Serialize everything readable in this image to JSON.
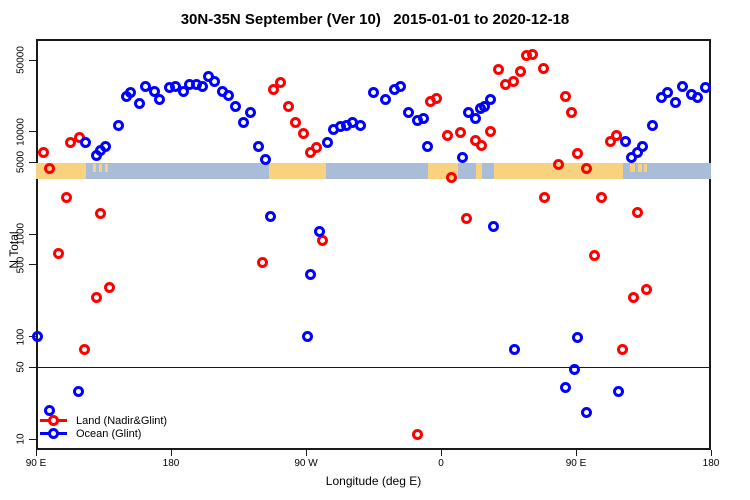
{
  "chart_data": {
    "type": "scatter",
    "title": "30N-35N September (Ver 10)   2015-01-01 to 2020-12-18",
    "xlabel": "Longitude (deg E)",
    "ylabel": "N Total",
    "x_axis": {
      "note": "longitude axis wraps eastward from 90E through the dateline back to 180",
      "ticks": [
        {
          "lon": 90,
          "label": "90 E"
        },
        {
          "lon": 180,
          "label": "180"
        },
        {
          "lon": 270,
          "label": "90 W"
        },
        {
          "lon": 360,
          "label": "0"
        },
        {
          "lon": 450,
          "label": "90 E"
        },
        {
          "lon": 540,
          "label": "180"
        }
      ]
    },
    "y_axis": {
      "scale": "log",
      "ticks": [
        10,
        50,
        100,
        500,
        1000,
        5000,
        10000,
        50000
      ],
      "ylim": [
        8,
        80000
      ]
    },
    "reference_line_y": 50,
    "map_band": {
      "ocean_color": "#a9bdd9",
      "land_color": "#f8d27e",
      "value_top": 5000,
      "value_bottom": 3500,
      "segments": [
        {
          "from": 90,
          "to": 123,
          "type": "land"
        },
        {
          "from": 123,
          "to": 245,
          "type": "ocean"
        },
        {
          "from": 245,
          "to": 283,
          "type": "land"
        },
        {
          "from": 283,
          "to": 351,
          "type": "ocean"
        },
        {
          "from": 351,
          "to": 371,
          "type": "land"
        },
        {
          "from": 371,
          "to": 383,
          "type": "ocean"
        },
        {
          "from": 383,
          "to": 387,
          "type": "land"
        },
        {
          "from": 387,
          "to": 395,
          "type": "ocean"
        },
        {
          "from": 395,
          "to": 481,
          "type": "land"
        },
        {
          "from": 481,
          "to": 540,
          "type": "ocean"
        }
      ],
      "islands": [
        {
          "from": 128,
          "to": 130
        },
        {
          "from": 132,
          "to": 134
        },
        {
          "from": 136,
          "to": 138
        },
        {
          "from": 486,
          "to": 489
        },
        {
          "from": 491,
          "to": 494
        },
        {
          "from": 495,
          "to": 497
        }
      ]
    },
    "legend": [
      {
        "label": "Land (Nadir&Glint)",
        "color": "#ff0000"
      },
      {
        "label": "Ocean (Glint)",
        "color": "#0000ff"
      }
    ],
    "series": [
      {
        "name": "Land (Nadir&Glint)",
        "color": "#ff0000",
        "points": [
          [
            95,
            6200
          ],
          [
            99,
            4400
          ],
          [
            113,
            7800
          ],
          [
            119,
            8700
          ],
          [
            110,
            2250
          ],
          [
            133,
            1600
          ],
          [
            105,
            640
          ],
          [
            130,
            240
          ],
          [
            139,
            300
          ],
          [
            122,
            75
          ],
          [
            253,
            30000
          ],
          [
            248,
            25500
          ],
          [
            258,
            17400
          ],
          [
            263,
            12200
          ],
          [
            268,
            9500
          ],
          [
            273,
            6200
          ],
          [
            277,
            7000
          ],
          [
            241,
            530
          ],
          [
            281,
            875
          ],
          [
            353,
            19500
          ],
          [
            357,
            21000
          ],
          [
            364,
            9100
          ],
          [
            373,
            9900
          ],
          [
            383,
            8250
          ],
          [
            387,
            7350
          ],
          [
            393,
            10100
          ],
          [
            367,
            3600
          ],
          [
            398,
            40000
          ],
          [
            403,
            29000
          ],
          [
            408,
            30600
          ],
          [
            413,
            38500
          ],
          [
            417,
            55500
          ],
          [
            421,
            56500
          ],
          [
            428,
            41500
          ],
          [
            377,
            1430
          ],
          [
            344,
            11
          ],
          [
            429,
            2300
          ],
          [
            443,
            22000
          ],
          [
            447,
            15300
          ],
          [
            451,
            6100
          ],
          [
            438,
            4750
          ],
          [
            457,
            4400
          ],
          [
            477,
            9100
          ],
          [
            473,
            7950
          ],
          [
            467,
            2250
          ],
          [
            491,
            1640
          ],
          [
            462,
            620
          ],
          [
            488,
            240
          ],
          [
            497,
            290
          ],
          [
            481,
            75
          ]
        ]
      },
      {
        "name": "Ocean (Glint)",
        "color": "#0000ff",
        "points": [
          [
            123,
            7900
          ],
          [
            130,
            5800
          ],
          [
            133,
            6600
          ],
          [
            136,
            7100
          ],
          [
            145,
            11600
          ],
          [
            150,
            22000
          ],
          [
            153,
            24000
          ],
          [
            159,
            19000
          ],
          [
            163,
            27500
          ],
          [
            169,
            24500
          ],
          [
            172,
            20400
          ],
          [
            179,
            27000
          ],
          [
            183,
            27500
          ],
          [
            188,
            24500
          ],
          [
            192,
            28700
          ],
          [
            197,
            28700
          ],
          [
            201,
            27400
          ],
          [
            205,
            34300
          ],
          [
            209,
            30600
          ],
          [
            214,
            24500
          ],
          [
            218,
            22400
          ],
          [
            223,
            17400
          ],
          [
            233,
            15500
          ],
          [
            228,
            12200
          ],
          [
            238,
            7100
          ],
          [
            243,
            5300
          ],
          [
            284,
            7800
          ],
          [
            288,
            10400
          ],
          [
            293,
            11100
          ],
          [
            297,
            11400
          ],
          [
            301,
            12400
          ],
          [
            306,
            11600
          ],
          [
            315,
            24000
          ],
          [
            323,
            20400
          ],
          [
            329,
            25700
          ],
          [
            333,
            27400
          ],
          [
            338,
            15500
          ],
          [
            344,
            12900
          ],
          [
            348,
            13500
          ],
          [
            351,
            7200
          ],
          [
            378,
            15200
          ],
          [
            383,
            13500
          ],
          [
            386,
            16900
          ],
          [
            389,
            17400
          ],
          [
            393,
            20400
          ],
          [
            374,
            5550
          ],
          [
            483,
            7950
          ],
          [
            487,
            5650
          ],
          [
            491,
            6300
          ],
          [
            494,
            7100
          ],
          [
            501,
            11400
          ],
          [
            507,
            21400
          ],
          [
            511,
            24000
          ],
          [
            516,
            19100
          ],
          [
            521,
            27400
          ],
          [
            527,
            22900
          ],
          [
            531,
            21400
          ],
          [
            536,
            26800
          ],
          [
            246,
            1470
          ],
          [
            279,
            1050
          ],
          [
            91,
            100
          ],
          [
            273,
            400
          ],
          [
            271,
            101
          ],
          [
            395,
            1180
          ],
          [
            409,
            74
          ],
          [
            451,
            97
          ],
          [
            449,
            48
          ],
          [
            443,
            32
          ],
          [
            478,
            29
          ],
          [
            457,
            18
          ],
          [
            118,
            29
          ],
          [
            99,
            19
          ]
        ]
      }
    ]
  }
}
